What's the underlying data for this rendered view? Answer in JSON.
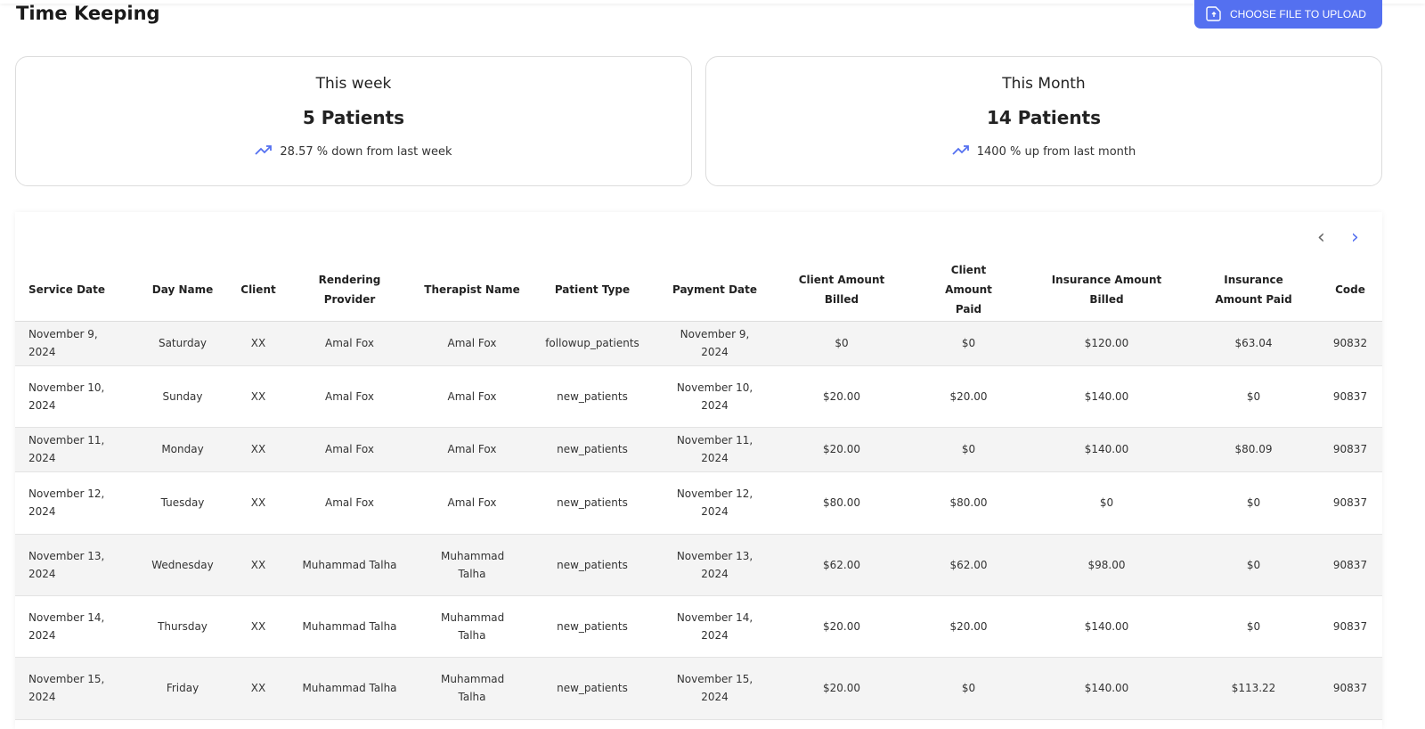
{
  "header": {
    "title": "Time Keeping",
    "upload_label": "CHOOSE FILE TO UPLOAD",
    "accent": "#5470f0"
  },
  "cards": [
    {
      "label": "This week",
      "value": "5 Patients",
      "change": "28.57 % down from last week",
      "icon": "trending-up-icon"
    },
    {
      "label": "This Month",
      "value": "14 Patients",
      "change": "1400 % up from last month",
      "icon": "trending-up-icon"
    }
  ],
  "table": {
    "columns": [
      "Service Date",
      "Day Name",
      "Client",
      "Rendering Provider",
      "Therapist Name",
      "Patient Type",
      "Payment Date",
      "Client Amount Billed",
      "Client Amount Paid",
      "Insurance Amount Billed",
      "Insurance Amount Paid",
      "Code"
    ],
    "rows": [
      [
        "November 9, 2024",
        "Saturday",
        "XX",
        "Amal Fox",
        "Amal Fox",
        "followup_patients",
        "November 9, 2024",
        "$0",
        "$0",
        "$120.00",
        "$63.04",
        "90832"
      ],
      [
        "November 10, 2024",
        "Sunday",
        "XX",
        "Amal Fox",
        "Amal Fox",
        "new_patients",
        "November 10, 2024",
        "$20.00",
        "$20.00",
        "$140.00",
        "$0",
        "90837"
      ],
      [
        "November 11, 2024",
        "Monday",
        "XX",
        "Amal Fox",
        "Amal Fox",
        "new_patients",
        "November 11, 2024",
        "$20.00",
        "$0",
        "$140.00",
        "$80.09",
        "90837"
      ],
      [
        "November 12, 2024",
        "Tuesday",
        "XX",
        "Amal Fox",
        "Amal Fox",
        "new_patients",
        "November 12, 2024",
        "$80.00",
        "$80.00",
        "$0",
        "$0",
        "90837"
      ],
      [
        "November 13, 2024",
        "Wednesday",
        "XX",
        "Muhammad Talha",
        "Muhammad Talha",
        "new_patients",
        "November 13, 2024",
        "$62.00",
        "$62.00",
        "$98.00",
        "$0",
        "90837"
      ],
      [
        "November 14, 2024",
        "Thursday",
        "XX",
        "Muhammad Talha",
        "Muhammad Talha",
        "new_patients",
        "November 14, 2024",
        "$20.00",
        "$20.00",
        "$140.00",
        "$0",
        "90837"
      ],
      [
        "November 15, 2024",
        "Friday",
        "XX",
        "Muhammad Talha",
        "Muhammad Talha",
        "new_patients",
        "November 15, 2024",
        "$20.00",
        "$0",
        "$140.00",
        "$113.22",
        "90837"
      ]
    ]
  }
}
